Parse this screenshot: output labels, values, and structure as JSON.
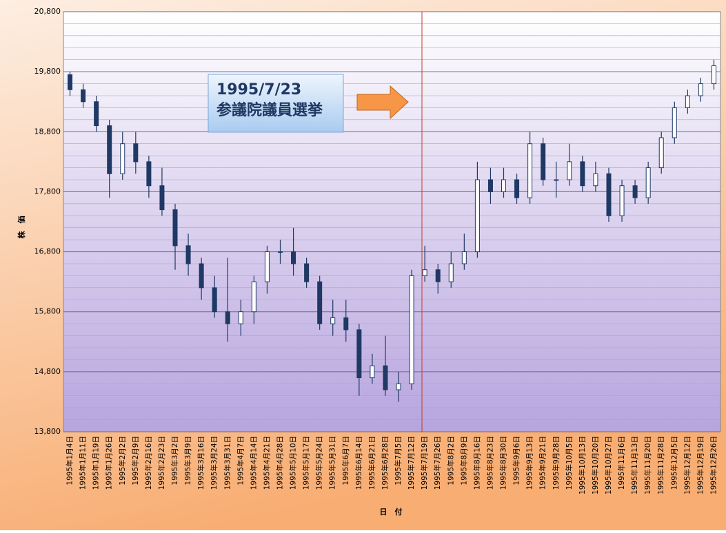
{
  "chart_data": {
    "type": "candlestick",
    "y_axis_label": "株　価",
    "x_axis_label": "日　付",
    "annotation": [
      "1995/7/23",
      "参議院議員選挙"
    ],
    "categories": [
      "1995年1月4日",
      "1995年1月11日",
      "1995年1月19日",
      "1995年1月26日",
      "1995年2月2日",
      "1995年2月9日",
      "1995年2月16日",
      "1995年2月23日",
      "1995年3月2日",
      "1995年3月9日",
      "1995年3月16日",
      "1995年3月24日",
      "1995年3月31日",
      "1995年4月7日",
      "1995年4月14日",
      "1995年4月21日",
      "1995年4月28日",
      "1995年5月10日",
      "1995年5月17日",
      "1995年5月24日",
      "1995年5月31日",
      "1995年6月7日",
      "1995年6月14日",
      "1995年6月21日",
      "1995年6月28日",
      "1995年7月5日",
      "1995年7月12日",
      "1995年7月19日",
      "1995年7月26日",
      "1995年8月2日",
      "1995年8月9日",
      "1995年8月16日",
      "1995年8月23日",
      "1995年8月30日",
      "1995年9月6日",
      "1995年9月13日",
      "1995年9月21日",
      "1995年9月28日",
      "1995年10月5日",
      "1995年10月13日",
      "1995年10月20日",
      "1995年10月27日",
      "1995年11月6日",
      "1995年11月13日",
      "1995年11月20日",
      "1995年11月28日",
      "1995年12月5日",
      "1995年12月12日",
      "1995年12月19日",
      "1995年12月26日"
    ],
    "open": [
      19750,
      19500,
      19300,
      18900,
      18100,
      18600,
      18300,
      17900,
      17500,
      16900,
      16600,
      16200,
      15800,
      15600,
      15800,
      16300,
      16800,
      16800,
      16600,
      16300,
      15600,
      15700,
      15500,
      14700,
      14900,
      14500,
      14600,
      16400,
      16500,
      16300,
      16600,
      16800,
      18000,
      17800,
      18000,
      17700,
      18600,
      18000,
      18000,
      18300,
      17900,
      18100,
      17400,
      17900,
      17700,
      18200,
      18700,
      19200,
      19400,
      19600
    ],
    "high": [
      19800,
      19600,
      19400,
      19000,
      18800,
      18800,
      18400,
      18200,
      17600,
      17100,
      16700,
      16400,
      16700,
      16000,
      16400,
      16900,
      17000,
      17200,
      16700,
      16400,
      16000,
      16000,
      15600,
      15100,
      15400,
      14800,
      16500,
      16900,
      16600,
      16800,
      17100,
      18300,
      18200,
      18200,
      18100,
      18800,
      18700,
      18300,
      18600,
      18400,
      18300,
      18200,
      18000,
      18000,
      18300,
      18800,
      19300,
      19500,
      19700,
      20000
    ],
    "low": [
      19400,
      19200,
      18800,
      17700,
      18000,
      18100,
      17700,
      17400,
      16500,
      16400,
      16000,
      15700,
      15300,
      15400,
      15600,
      16100,
      16600,
      16400,
      16200,
      15500,
      15400,
      15300,
      14400,
      14600,
      14400,
      14300,
      14500,
      16300,
      16100,
      16200,
      16500,
      16700,
      17600,
      17700,
      17600,
      17600,
      17900,
      17700,
      17900,
      17800,
      17800,
      17300,
      17300,
      17600,
      17600,
      18100,
      18600,
      19100,
      19300,
      19500
    ],
    "close": [
      19500,
      19300,
      18900,
      18100,
      18600,
      18300,
      17900,
      17500,
      16900,
      16600,
      16200,
      15800,
      15600,
      15800,
      16300,
      16800,
      16800,
      16600,
      16300,
      15600,
      15700,
      15500,
      14700,
      14900,
      14500,
      14600,
      16400,
      16500,
      16300,
      16600,
      16800,
      18000,
      17800,
      18000,
      17700,
      18600,
      18000,
      18000,
      18300,
      17900,
      18100,
      17400,
      17900,
      17700,
      18200,
      18700,
      19200,
      19400,
      19600,
      19900
    ],
    "up_color": "#ffffff",
    "down_color": "#1f3864",
    "wick_color": "#1f3864",
    "ylim": [
      13800,
      20800
    ],
    "yticks": [
      {
        "value": 13800,
        "label": "13,800"
      },
      {
        "value": 14800,
        "label": "14,800"
      },
      {
        "value": 15800,
        "label": "15,800"
      },
      {
        "value": 16800,
        "label": "16,800"
      },
      {
        "value": 17800,
        "label": "17,800"
      },
      {
        "value": 18800,
        "label": "18,800"
      },
      {
        "value": 19800,
        "label": "19,800"
      },
      {
        "value": 20800,
        "label": "20,800"
      }
    ],
    "minor_yticks": [
      14000,
      14200,
      14400,
      14600,
      15000,
      15200,
      15400,
      15600,
      16000,
      16200,
      16400,
      16600,
      17000,
      17200,
      17400,
      17600,
      18000,
      18200,
      18400,
      18600,
      19000,
      19200,
      19400,
      19600,
      20000,
      20200,
      20400,
      20600
    ],
    "grid": true
  }
}
